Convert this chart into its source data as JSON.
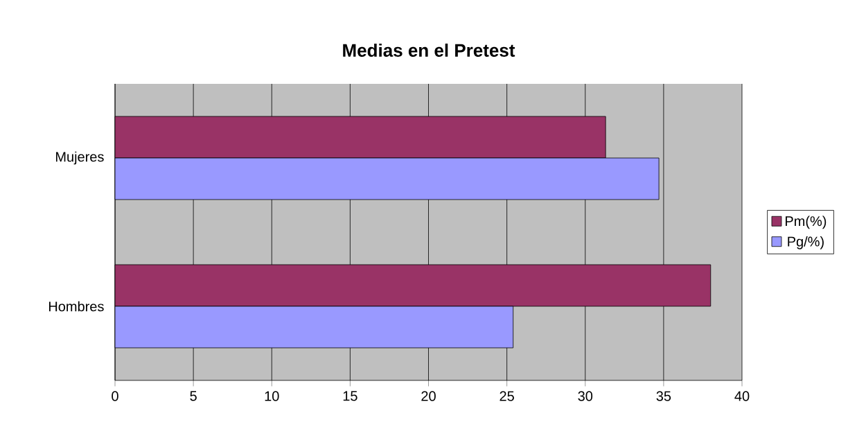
{
  "chart_data": {
    "type": "bar",
    "orientation": "horizontal",
    "title": "Medias en el Pretest",
    "categories": [
      "Mujeres",
      "Hombres"
    ],
    "series": [
      {
        "name": "Pm(%)",
        "color": "#993366",
        "values": [
          31.3,
          38.0
        ]
      },
      {
        "name": "Pg/%)",
        "color": "#9999ff",
        "values": [
          34.7,
          25.4
        ]
      }
    ],
    "xlim": [
      0,
      40
    ],
    "xticks": [
      0,
      5,
      10,
      15,
      20,
      25,
      30,
      35,
      40
    ],
    "grid": "x",
    "legend": "right"
  }
}
